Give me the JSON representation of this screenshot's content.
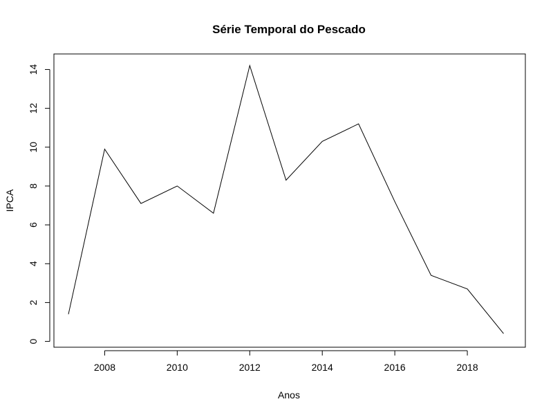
{
  "chart_data": {
    "type": "line",
    "title": "Série Temporal do Pescado",
    "xlabel": "Anos",
    "ylabel": "IPCA",
    "xlim": [
      2006.6,
      2019.6
    ],
    "ylim": [
      -0.3,
      14.8
    ],
    "x_ticks": [
      2008,
      2010,
      2012,
      2014,
      2016,
      2018
    ],
    "y_ticks": [
      0,
      2,
      4,
      6,
      8,
      10,
      12,
      14
    ],
    "grid": false,
    "legend": "none",
    "series": [
      {
        "color": "#000000",
        "x": [
          2007,
          2008,
          2009,
          2010,
          2011,
          2012,
          2013,
          2014,
          2015,
          2016,
          2017,
          2018,
          2019
        ],
        "values": [
          1.4,
          9.9,
          7.1,
          8.0,
          6.6,
          14.2,
          8.3,
          10.3,
          11.2,
          7.2,
          3.4,
          2.7,
          0.4
        ]
      }
    ]
  }
}
